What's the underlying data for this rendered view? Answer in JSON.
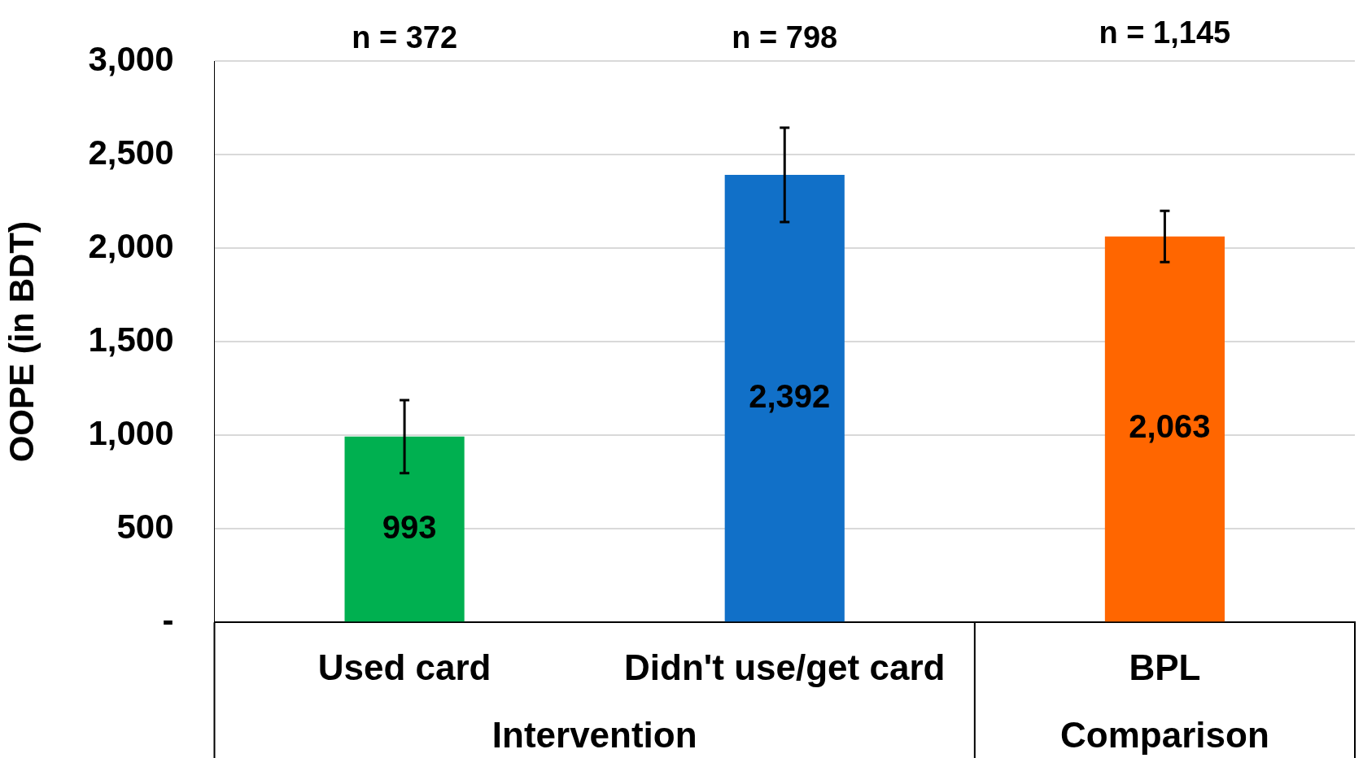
{
  "chart_data": {
    "type": "bar",
    "ylabel": "OOPE (in BDT)",
    "categories": [
      "Used card",
      "Didn't use/get card",
      "BPL"
    ],
    "values": [
      993,
      2392,
      2063
    ],
    "colors": [
      "#00b050",
      "#1170c8",
      "#ff6600"
    ],
    "errors": [
      195,
      252,
      137
    ],
    "value_labels": [
      "993",
      "2,392",
      "2,063"
    ],
    "ylim": [
      0,
      3000
    ],
    "yticks": [
      {
        "value": 0,
        "label": "-"
      },
      500,
      {
        "value": 1000,
        "label": "1,000"
      },
      {
        "value": 1500,
        "label": "1,500"
      },
      {
        "value": 2000,
        "label": "2,000"
      },
      {
        "value": 2500,
        "label": "2,500"
      },
      {
        "value": 3000,
        "label": "3,000"
      }
    ],
    "grid": "y",
    "legend": false,
    "annotations": [
      "n = 372",
      "n = 798",
      "n = 1,145",
      "Intervention",
      "Comparison"
    ]
  }
}
